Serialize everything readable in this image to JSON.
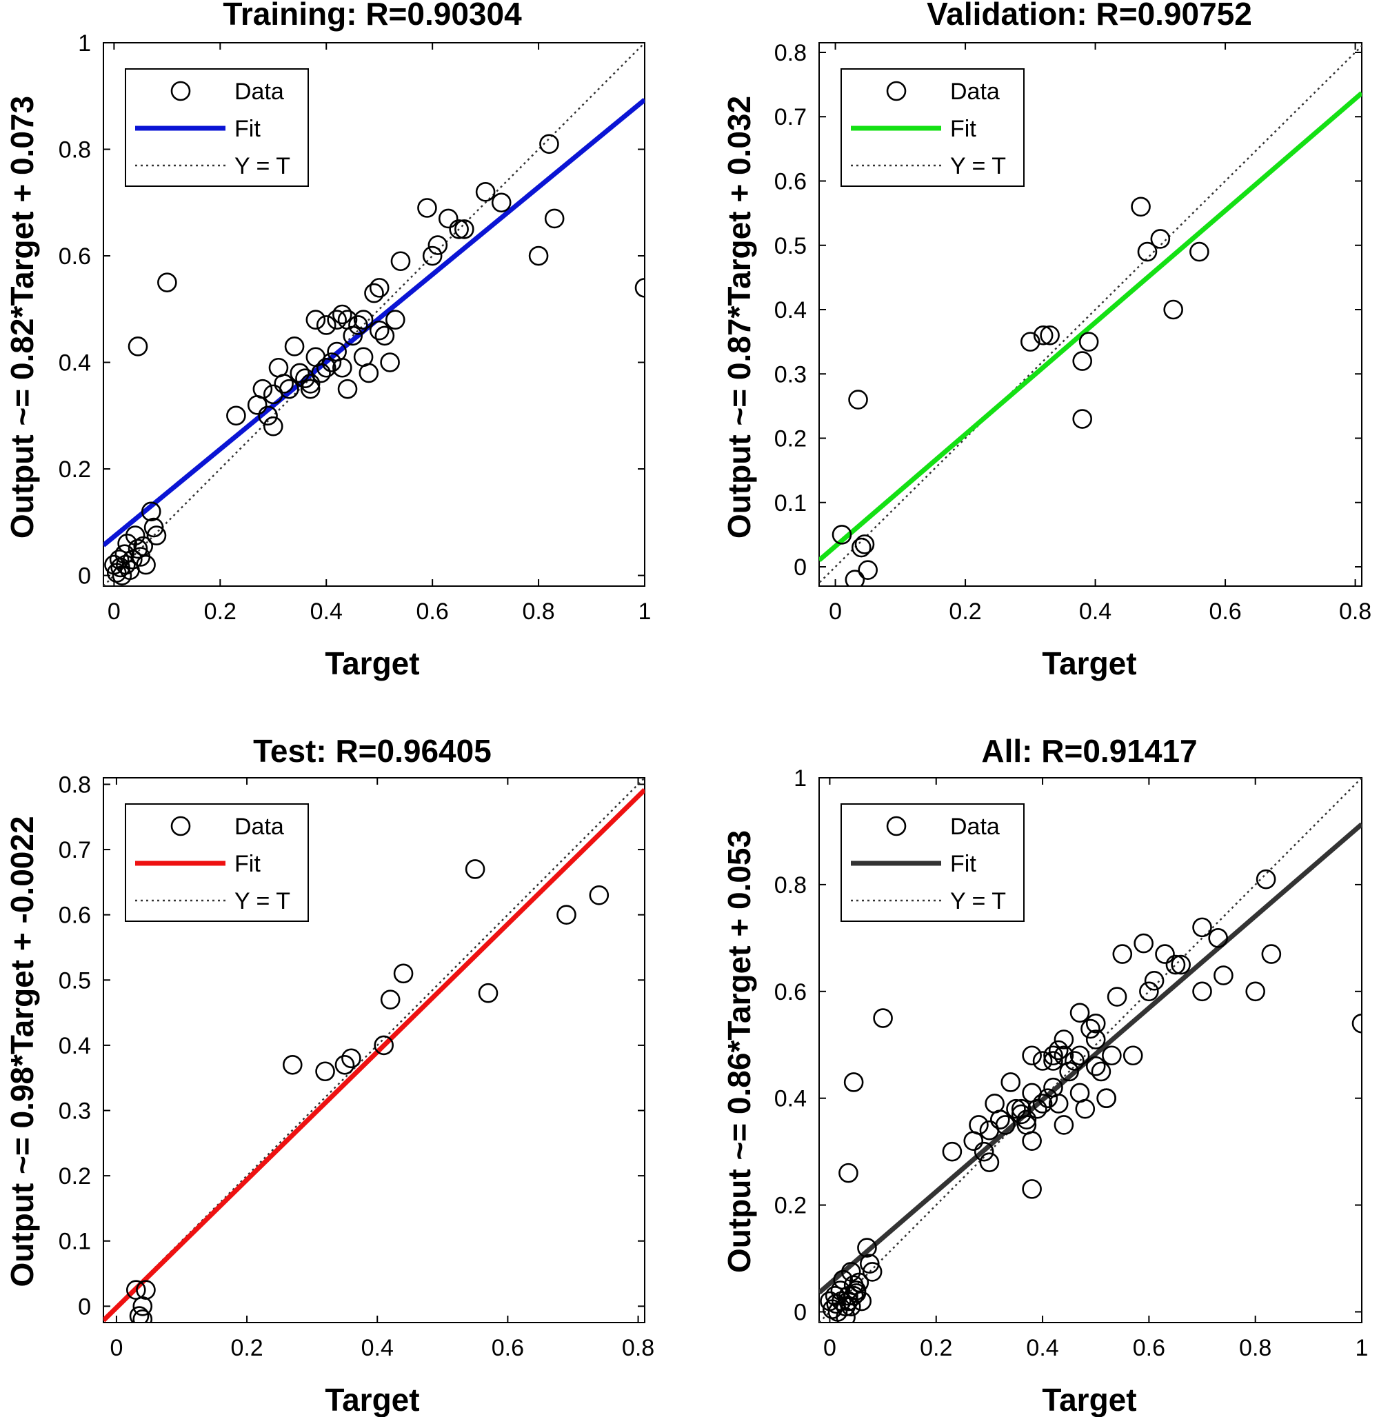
{
  "chart_data": [
    {
      "type": "scatter",
      "title": "Training: R=0.90304",
      "xlabel": "Target",
      "ylabel": "Output ~= 0.82*Target + 0.073",
      "xlim": [
        -0.02,
        1.0
      ],
      "ylim": [
        -0.02,
        1.0
      ],
      "xticks": [
        "0",
        "0.2",
        "0.4",
        "0.6",
        "0.8",
        "1"
      ],
      "yticks": [
        "0",
        "0.2",
        "0.4",
        "0.6",
        "0.8",
        "1"
      ],
      "legend": [
        "Data",
        "Fit",
        "Y = T"
      ],
      "legend_position": "top-left",
      "fit": {
        "slope": 0.82,
        "intercept": 0.073,
        "color": "#0a14d4"
      },
      "x": [
        0.0,
        0.005,
        0.01,
        0.012,
        0.015,
        0.02,
        0.022,
        0.025,
        0.03,
        0.035,
        0.04,
        0.045,
        0.05,
        0.055,
        0.06,
        0.07,
        0.075,
        0.08,
        0.045,
        0.1,
        0.23,
        0.27,
        0.28,
        0.29,
        0.3,
        0.3,
        0.31,
        0.32,
        0.33,
        0.34,
        0.35,
        0.36,
        0.37,
        0.37,
        0.38,
        0.38,
        0.39,
        0.4,
        0.4,
        0.41,
        0.42,
        0.42,
        0.43,
        0.43,
        0.44,
        0.44,
        0.45,
        0.46,
        0.47,
        0.47,
        0.48,
        0.49,
        0.5,
        0.5,
        0.51,
        0.52,
        0.53,
        0.54,
        0.59,
        0.6,
        0.61,
        0.63,
        0.65,
        0.66,
        0.7,
        0.73,
        0.8,
        0.82,
        0.83,
        1.0
      ],
      "y": [
        0.02,
        0.005,
        0.03,
        0.015,
        0.0,
        0.04,
        0.02,
        0.06,
        0.01,
        0.03,
        0.075,
        0.05,
        0.035,
        0.055,
        0.02,
        0.12,
        0.09,
        0.075,
        0.43,
        0.55,
        0.3,
        0.32,
        0.35,
        0.3,
        0.28,
        0.34,
        0.39,
        0.36,
        0.35,
        0.43,
        0.38,
        0.37,
        0.36,
        0.35,
        0.41,
        0.48,
        0.38,
        0.39,
        0.47,
        0.4,
        0.42,
        0.48,
        0.39,
        0.49,
        0.48,
        0.35,
        0.45,
        0.47,
        0.48,
        0.41,
        0.38,
        0.53,
        0.46,
        0.54,
        0.45,
        0.4,
        0.48,
        0.59,
        0.69,
        0.6,
        0.62,
        0.67,
        0.65,
        0.65,
        0.72,
        0.7,
        0.6,
        0.81,
        0.67,
        0.54
      ]
    },
    {
      "type": "scatter",
      "title": "Validation: R=0.90752",
      "xlabel": "Target",
      "ylabel": "Output ~= 0.87*Target + 0.032",
      "xlim": [
        -0.025,
        0.81
      ],
      "ylim": [
        -0.03,
        0.815
      ],
      "xticks": [
        "0",
        "0.2",
        "0.4",
        "0.6",
        "0.8"
      ],
      "yticks": [
        "0",
        "0.1",
        "0.2",
        "0.3",
        "0.4",
        "0.5",
        "0.6",
        "0.7",
        "0.8"
      ],
      "legend": [
        "Data",
        "Fit",
        "Y = T"
      ],
      "legend_position": "top-left",
      "fit": {
        "slope": 0.87,
        "intercept": 0.032,
        "color": "#14e014"
      },
      "x": [
        0.01,
        0.03,
        0.035,
        0.04,
        0.045,
        0.05,
        0.3,
        0.32,
        0.33,
        0.38,
        0.38,
        0.39,
        0.47,
        0.48,
        0.5,
        0.52,
        0.56
      ],
      "y": [
        0.05,
        -0.02,
        0.26,
        0.03,
        0.035,
        -0.005,
        0.35,
        0.36,
        0.36,
        0.32,
        0.23,
        0.35,
        0.56,
        0.49,
        0.51,
        0.4,
        0.49
      ]
    },
    {
      "type": "scatter",
      "title": "Test: R=0.96405",
      "xlabel": "Target",
      "ylabel": "Output ~= 0.98*Target + -0.0022",
      "xlim": [
        -0.02,
        0.81
      ],
      "ylim": [
        -0.025,
        0.81
      ],
      "xticks": [
        "0",
        "0.2",
        "0.4",
        "0.6",
        "0.8"
      ],
      "yticks": [
        "0",
        "0.1",
        "0.2",
        "0.3",
        "0.4",
        "0.5",
        "0.6",
        "0.7",
        "0.8"
      ],
      "legend": [
        "Data",
        "Fit",
        "Y = T"
      ],
      "legend_position": "top-left",
      "fit": {
        "slope": 0.98,
        "intercept": -0.0022,
        "color": "#ee1111"
      },
      "x": [
        0.03,
        0.035,
        0.04,
        0.045,
        0.04,
        0.27,
        0.32,
        0.35,
        0.36,
        0.41,
        0.42,
        0.44,
        0.55,
        0.57,
        0.69,
        0.74
      ],
      "y": [
        0.025,
        -0.015,
        0.0,
        0.025,
        -0.02,
        0.37,
        0.36,
        0.37,
        0.38,
        0.4,
        0.47,
        0.51,
        0.67,
        0.48,
        0.6,
        0.63
      ]
    },
    {
      "type": "scatter",
      "title": "All: R=0.91417",
      "xlabel": "Target",
      "ylabel": "Output ~= 0.86*Target + 0.053",
      "xlim": [
        -0.02,
        1.0
      ],
      "ylim": [
        -0.02,
        1.0
      ],
      "xticks": [
        "0",
        "0.2",
        "0.4",
        "0.6",
        "0.8",
        "1"
      ],
      "yticks": [
        "0",
        "0.2",
        "0.4",
        "0.6",
        "0.8",
        "1"
      ],
      "legend": [
        "Data",
        "Fit",
        "Y = T"
      ],
      "legend_position": "top-left",
      "fit": {
        "slope": 0.86,
        "intercept": 0.053,
        "color": "#333333"
      },
      "x": [
        0.0,
        0.005,
        0.01,
        0.012,
        0.015,
        0.02,
        0.022,
        0.025,
        0.03,
        0.035,
        0.04,
        0.045,
        0.05,
        0.055,
        0.06,
        0.03,
        0.04,
        0.045,
        0.035,
        0.05,
        0.07,
        0.075,
        0.08,
        0.045,
        0.035,
        0.1,
        0.23,
        0.27,
        0.28,
        0.29,
        0.3,
        0.3,
        0.31,
        0.32,
        0.33,
        0.34,
        0.35,
        0.36,
        0.37,
        0.37,
        0.38,
        0.38,
        0.39,
        0.4,
        0.4,
        0.41,
        0.42,
        0.42,
        0.43,
        0.43,
        0.44,
        0.44,
        0.45,
        0.46,
        0.47,
        0.47,
        0.48,
        0.49,
        0.5,
        0.5,
        0.51,
        0.52,
        0.53,
        0.54,
        0.59,
        0.6,
        0.61,
        0.63,
        0.65,
        0.66,
        0.7,
        0.73,
        0.8,
        0.82,
        0.83,
        1.0,
        0.38,
        0.38,
        0.47,
        0.5,
        0.52,
        0.55,
        0.57,
        0.7,
        0.74,
        0.32,
        0.36,
        0.42,
        0.44
      ],
      "y": [
        0.02,
        0.005,
        0.03,
        0.015,
        0.0,
        0.04,
        0.02,
        0.06,
        0.01,
        0.03,
        0.075,
        0.05,
        0.035,
        0.055,
        0.02,
        -0.01,
        0.01,
        0.03,
        0.02,
        0.04,
        0.12,
        0.09,
        0.075,
        0.43,
        0.26,
        0.55,
        0.3,
        0.32,
        0.35,
        0.3,
        0.28,
        0.34,
        0.39,
        0.36,
        0.35,
        0.43,
        0.38,
        0.37,
        0.36,
        0.35,
        0.41,
        0.48,
        0.38,
        0.39,
        0.47,
        0.4,
        0.42,
        0.48,
        0.39,
        0.49,
        0.48,
        0.35,
        0.45,
        0.47,
        0.48,
        0.41,
        0.38,
        0.53,
        0.46,
        0.54,
        0.45,
        0.4,
        0.48,
        0.59,
        0.69,
        0.6,
        0.62,
        0.67,
        0.65,
        0.65,
        0.72,
        0.7,
        0.6,
        0.81,
        0.67,
        0.54,
        0.32,
        0.23,
        0.56,
        0.51,
        0.4,
        0.67,
        0.48,
        0.6,
        0.63,
        0.36,
        0.38,
        0.47,
        0.51
      ]
    }
  ]
}
